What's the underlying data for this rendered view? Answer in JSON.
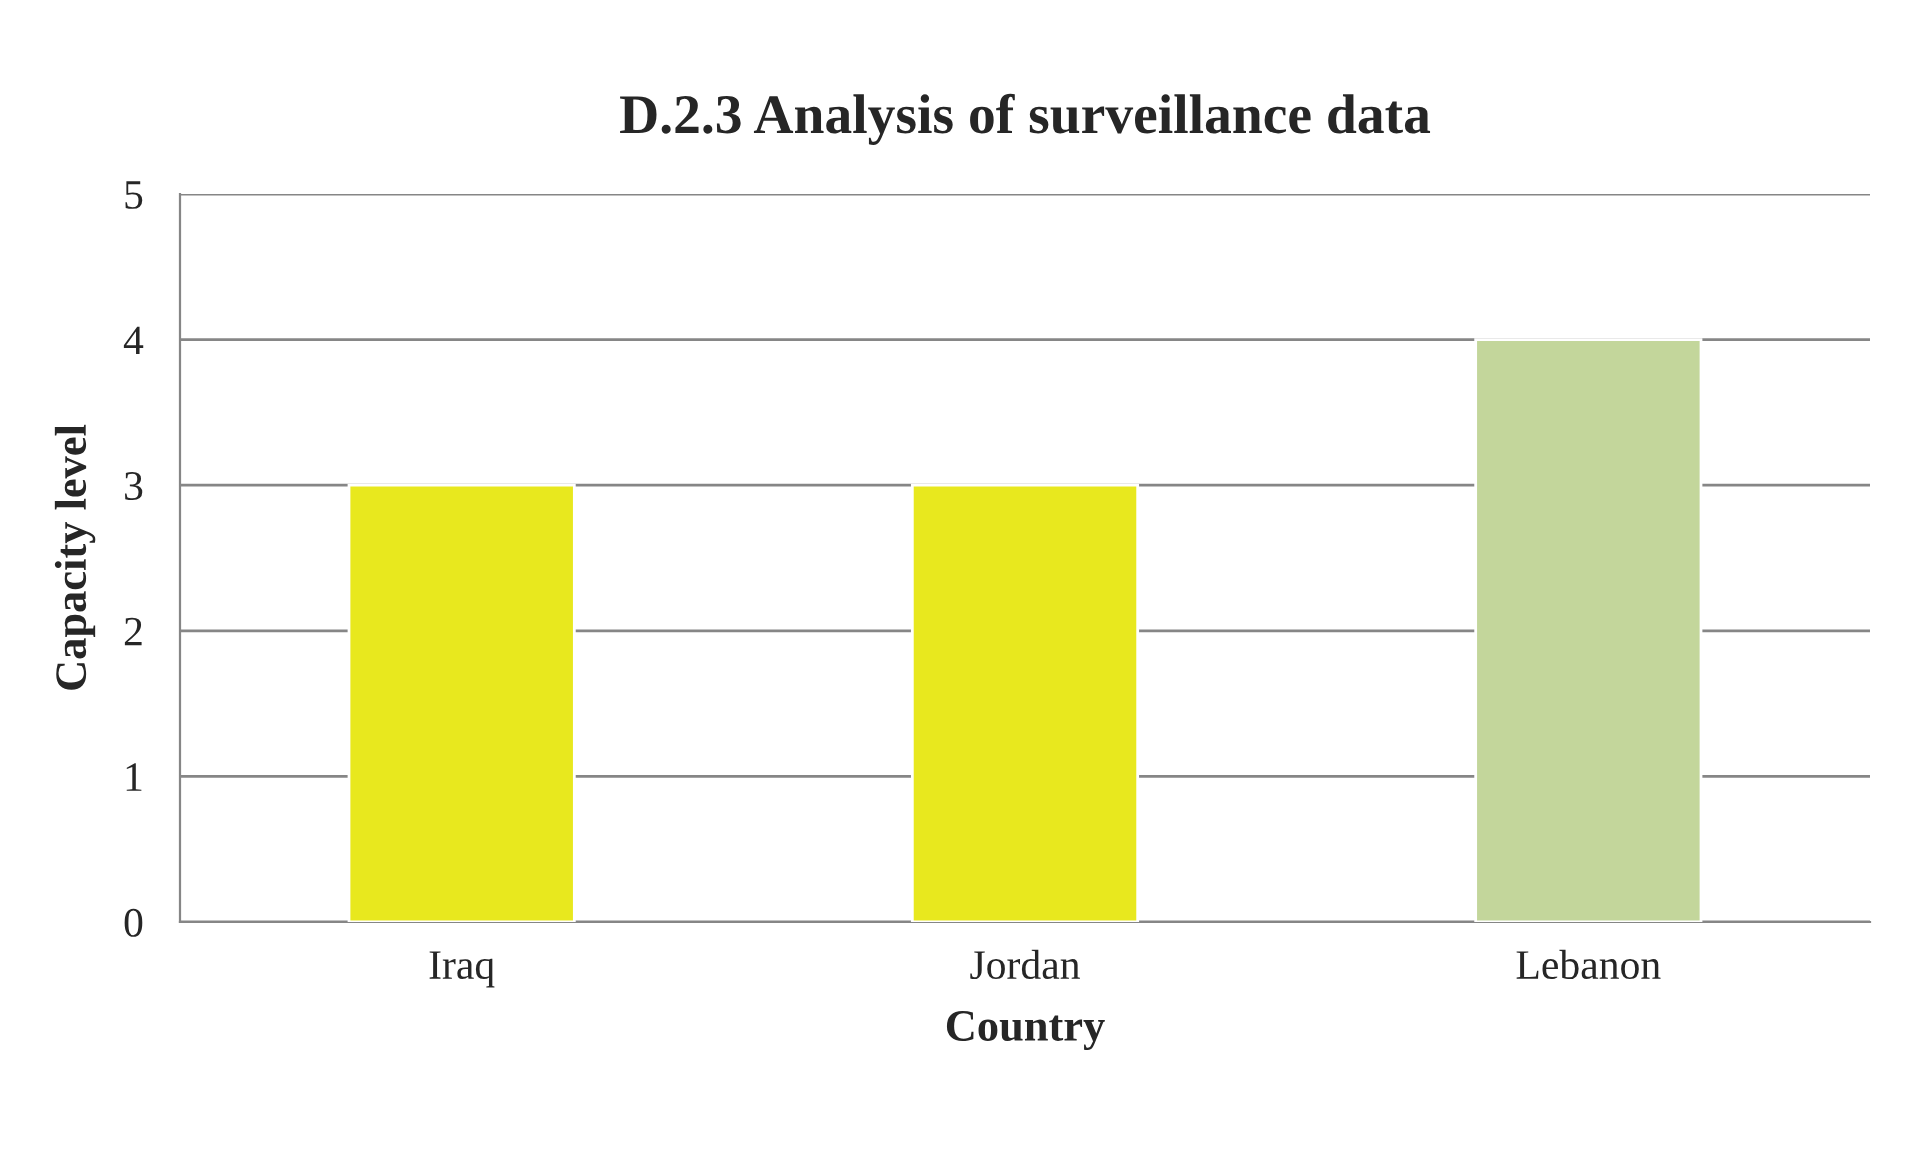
{
  "chart_data": {
    "type": "bar",
    "title": "D.2.3 Analysis of surveillance data",
    "xlabel": "Country",
    "ylabel": "Capacity level",
    "categories": [
      "Iraq",
      "Jordan",
      "Lebanon"
    ],
    "values": [
      3,
      3,
      4
    ],
    "colors": [
      "#e8e81e",
      "#e8e81e",
      "#c3d69b"
    ],
    "ylim": [
      0,
      5
    ],
    "yticks": [
      0,
      1,
      2,
      3,
      4,
      5
    ],
    "grid": "y",
    "legend": false
  }
}
